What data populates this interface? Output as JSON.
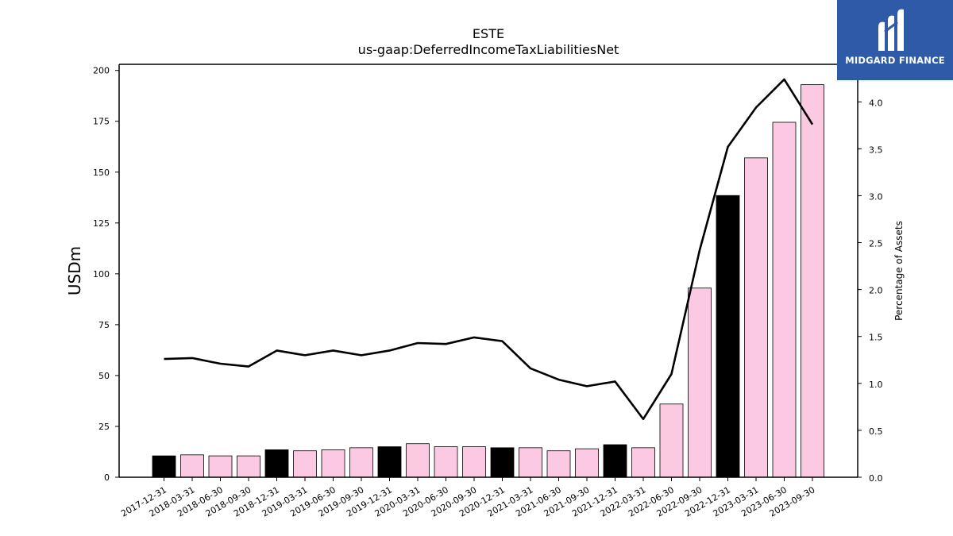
{
  "logo": {
    "text": "MIDGARD FINANCE"
  },
  "colors": {
    "annual_bar": "#000000",
    "quarter_bar": "#fcc9e3",
    "line": "#000000",
    "logo_bg": "#2f5aa8"
  },
  "chart_data": {
    "type": "bar",
    "title": "ESTE",
    "subtitle": "us-gaap:DeferredIncomeTaxLiabilitiesNet",
    "ylabel": "USDm",
    "y2label": "Percentage of Assets",
    "ylim": [
      0,
      203
    ],
    "y2lim": [
      0.0,
      4.4
    ],
    "yticks": [
      0,
      25,
      50,
      75,
      100,
      125,
      150,
      175,
      200
    ],
    "y2ticks": [
      "0.0",
      "0.5",
      "1.0",
      "1.5",
      "2.0",
      "2.5",
      "3.0",
      "3.5",
      "4.0"
    ],
    "categories": [
      "2017-12-31",
      "2018-03-31",
      "2018-06-30",
      "2018-09-30",
      "2018-12-31",
      "2019-03-31",
      "2019-06-30",
      "2019-09-30",
      "2019-12-31",
      "2020-03-31",
      "2020-06-30",
      "2020-09-30",
      "2020-12-31",
      "2021-03-31",
      "2021-06-30",
      "2021-09-30",
      "2021-12-31",
      "2022-03-31",
      "2022-06-30",
      "2022-09-30",
      "2022-12-31",
      "2023-03-31",
      "2023-06-30",
      "2023-09-30"
    ],
    "series": [
      {
        "kind": "bar",
        "axis": "left",
        "values": [
          10.5,
          11.0,
          10.5,
          10.5,
          13.5,
          13.0,
          13.5,
          14.5,
          15.0,
          16.5,
          15.0,
          15.0,
          14.5,
          14.5,
          13.0,
          14.0,
          16.0,
          14.5,
          36.0,
          93.0,
          138.5,
          157.0,
          174.5,
          193.0
        ],
        "annual": [
          true,
          false,
          false,
          false,
          true,
          false,
          false,
          false,
          true,
          false,
          false,
          false,
          true,
          false,
          false,
          false,
          true,
          false,
          false,
          false,
          true,
          false,
          false,
          false
        ]
      },
      {
        "kind": "line",
        "axis": "right",
        "values": [
          1.26,
          1.27,
          1.21,
          1.18,
          1.35,
          1.3,
          1.35,
          1.3,
          1.35,
          1.43,
          1.42,
          1.49,
          1.45,
          1.16,
          1.04,
          0.97,
          1.02,
          0.62,
          1.1,
          2.42,
          3.52,
          3.94,
          4.24,
          3.76
        ]
      }
    ]
  }
}
